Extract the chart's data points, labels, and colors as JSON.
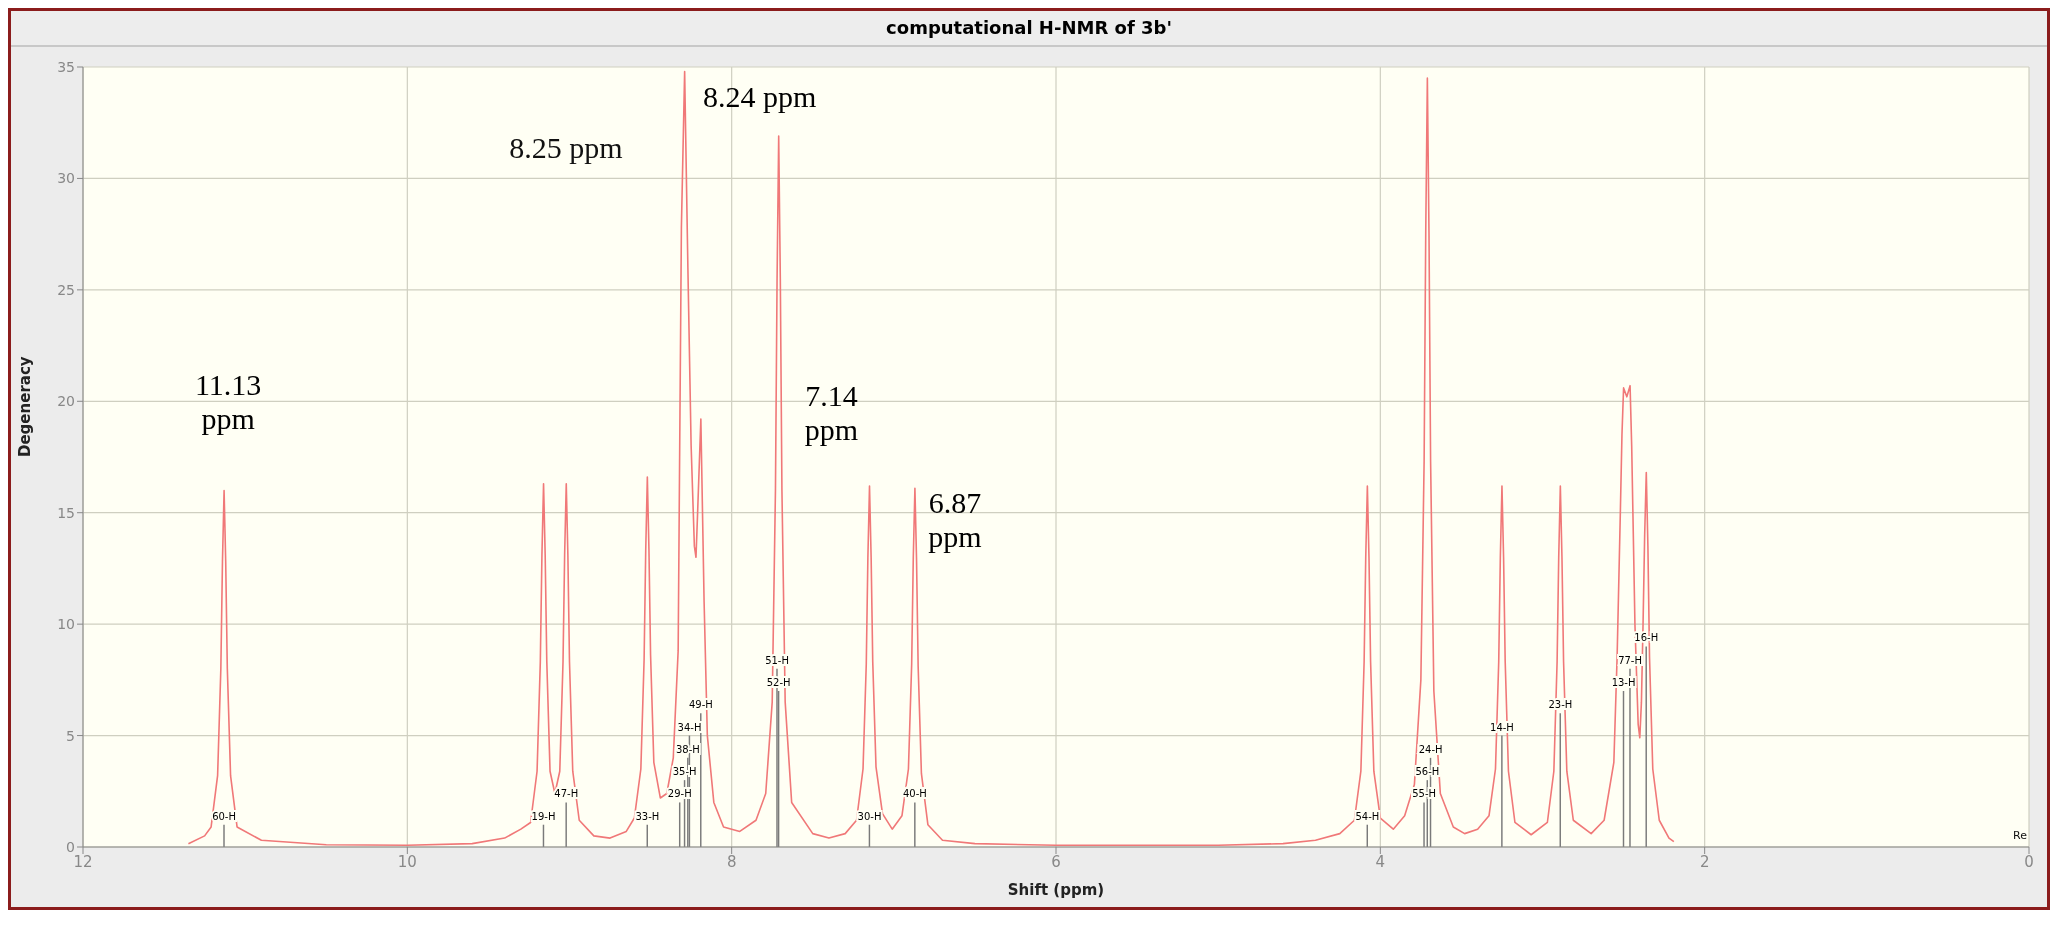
{
  "chart_data": {
    "type": "line",
    "title": "computational H-NMR of 3b'",
    "xlabel": "Shift (ppm)",
    "ylabel": "Degeneracy",
    "xlim": [
      12,
      0
    ],
    "xticks": [
      12,
      10,
      8,
      6,
      4,
      2,
      0
    ],
    "ylim": [
      0,
      35
    ],
    "yticks": [
      0,
      5,
      10,
      15,
      20,
      25,
      30,
      35
    ],
    "grid": true,
    "marker": "none",
    "series": [
      {
        "color": "#f07878",
        "x": [
          11.35,
          11.25,
          11.21,
          11.17,
          11.15,
          11.14,
          11.13,
          11.12,
          11.11,
          11.09,
          11.05,
          10.9,
          10.5,
          10.0,
          9.6,
          9.4,
          9.3,
          9.24,
          9.2,
          9.18,
          9.17,
          9.16,
          9.15,
          9.14,
          9.12,
          9.09,
          9.06,
          9.04,
          9.03,
          9.02,
          9.01,
          9.0,
          8.98,
          8.94,
          8.85,
          8.75,
          8.65,
          8.6,
          8.56,
          8.54,
          8.53,
          8.52,
          8.51,
          8.5,
          8.48,
          8.44,
          8.4,
          8.36,
          8.33,
          8.31,
          8.29,
          8.27,
          8.25,
          8.23,
          8.22,
          8.21,
          8.19,
          8.17,
          8.15,
          8.11,
          8.05,
          7.95,
          7.85,
          7.79,
          7.75,
          7.73,
          7.72,
          7.71,
          7.7,
          7.69,
          7.67,
          7.63,
          7.5,
          7.4,
          7.3,
          7.23,
          7.19,
          7.17,
          7.16,
          7.15,
          7.14,
          7.13,
          7.11,
          7.07,
          7.01,
          6.95,
          6.91,
          6.89,
          6.88,
          6.87,
          6.86,
          6.85,
          6.83,
          6.79,
          6.7,
          6.5,
          6.0,
          5.0,
          4.6,
          4.4,
          4.25,
          4.16,
          4.12,
          4.1,
          4.09,
          4.08,
          4.07,
          4.06,
          4.04,
          4.0,
          3.92,
          3.85,
          3.79,
          3.75,
          3.73,
          3.72,
          3.71,
          3.7,
          3.69,
          3.67,
          3.63,
          3.55,
          3.48,
          3.4,
          3.33,
          3.29,
          3.27,
          3.26,
          3.25,
          3.24,
          3.23,
          3.21,
          3.17,
          3.07,
          2.97,
          2.93,
          2.91,
          2.9,
          2.89,
          2.88,
          2.87,
          2.85,
          2.81,
          2.7,
          2.62,
          2.56,
          2.54,
          2.52,
          2.51,
          2.5,
          2.48,
          2.46,
          2.45,
          2.43,
          2.41,
          2.4,
          2.39,
          2.38,
          2.37,
          2.36,
          2.35,
          2.34,
          2.32,
          2.28,
          2.22,
          2.19
        ],
        "values": [
          0.15,
          0.5,
          0.9,
          3.2,
          8,
          12.8,
          16,
          12.8,
          8,
          3.2,
          0.9,
          0.3,
          0.1,
          0.08,
          0.15,
          0.4,
          0.8,
          1.1,
          3.4,
          8.3,
          13.1,
          16.3,
          13.1,
          8.3,
          3.4,
          2.4,
          3.4,
          8.3,
          13.1,
          16.3,
          13.1,
          8.3,
          3.4,
          1.2,
          0.5,
          0.4,
          0.7,
          1.3,
          3.5,
          8.4,
          13.3,
          16.6,
          13.3,
          8.6,
          3.8,
          2.2,
          2.4,
          4.0,
          8.8,
          27.8,
          34.8,
          26,
          18,
          13.5,
          13,
          15,
          19.2,
          11,
          5,
          2,
          0.9,
          0.7,
          1.2,
          2.4,
          6.5,
          16,
          25.5,
          31.9,
          25.5,
          16,
          6.5,
          2,
          0.6,
          0.4,
          0.6,
          1.2,
          3.5,
          8.2,
          13,
          16.2,
          13,
          8.3,
          3.6,
          1.5,
          0.8,
          1.4,
          3.5,
          8.2,
          13,
          16.1,
          12.9,
          8.1,
          3.3,
          1.0,
          0.3,
          0.15,
          0.08,
          0.08,
          0.15,
          0.3,
          0.6,
          1.2,
          3.4,
          8.3,
          13,
          16.2,
          13,
          8.3,
          3.4,
          1.3,
          0.8,
          1.4,
          2.8,
          7.5,
          17.3,
          27.6,
          34.5,
          27.6,
          17.3,
          7,
          2.4,
          0.9,
          0.6,
          0.8,
          1.4,
          3.5,
          8.3,
          13,
          16.2,
          13,
          8.3,
          3.4,
          1.1,
          0.55,
          1.1,
          3.4,
          8.3,
          13,
          16.2,
          13,
          8.3,
          3.4,
          1.2,
          0.6,
          1.2,
          3.8,
          8.5,
          15,
          18.5,
          20.6,
          20.2,
          20.7,
          18,
          10,
          5.5,
          4.9,
          6.5,
          10,
          14,
          16.8,
          13.5,
          8.5,
          3.5,
          1.2,
          0.4,
          0.24
        ]
      },
      {
        "type": "bar",
        "color": "#7a7a7a",
        "x": [
          11.13,
          9.16,
          9.02,
          8.52,
          8.32,
          8.29,
          8.27,
          8.26,
          8.19,
          7.72,
          7.71,
          7.15,
          6.87,
          4.08,
          3.73,
          3.71,
          3.69,
          3.25,
          2.89,
          2.5,
          2.46,
          2.36
        ],
        "values": [
          1,
          1,
          2,
          1,
          2,
          3,
          4,
          5,
          6,
          8,
          7,
          1,
          2,
          1,
          2,
          3,
          4,
          5,
          6,
          7,
          8,
          9
        ]
      }
    ],
    "annotations": [
      {
        "text": "11.13\nppm",
        "x": 11.13,
        "y": 16
      },
      "8.25 ppm",
      {
        "text": "8.24 ppm",
        "x": 8.29,
        "y": 34.8
      },
      {
        "text": "7.14\nppm",
        "x": 7.15,
        "y": 16.2
      },
      {
        "text": "6.87\nppm",
        "x": 6.87,
        "y": 16.1
      },
      "Re",
      {
        "text": "60-H",
        "x": 11.13,
        "y": 1
      },
      {
        "text": "19-H",
        "x": 9.16,
        "y": 1
      },
      {
        "text": "47-H",
        "x": 9.02,
        "y": 2
      },
      {
        "text": "33-H",
        "x": 8.52,
        "y": 1
      },
      {
        "text": "29-H",
        "x": 8.32,
        "y": 2
      },
      {
        "text": "35-H",
        "x": 8.29,
        "y": 3
      },
      {
        "text": "38-H",
        "x": 8.27,
        "y": 4
      },
      {
        "text": "34-H",
        "x": 8.26,
        "y": 5
      },
      {
        "text": "49-H",
        "x": 8.19,
        "y": 6
      },
      {
        "text": "51-H",
        "x": 7.72,
        "y": 8
      },
      {
        "text": "52-H",
        "x": 7.71,
        "y": 7
      },
      {
        "text": "30-H",
        "x": 7.15,
        "y": 1
      },
      {
        "text": "40-H",
        "x": 6.87,
        "y": 2
      },
      {
        "text": "54-H",
        "x": 4.08,
        "y": 1
      },
      {
        "text": "55-H",
        "x": 3.73,
        "y": 2
      },
      {
        "text": "56-H",
        "x": 3.71,
        "y": 3
      },
      {
        "text": "24-H",
        "x": 3.69,
        "y": 4
      },
      {
        "text": "14-H",
        "x": 3.25,
        "y": 5
      },
      {
        "text": "23-H",
        "x": 2.89,
        "y": 6
      },
      {
        "text": "13-H",
        "x": 2.5,
        "y": 7
      },
      {
        "text": "77-H",
        "x": 2.46,
        "y": 8
      },
      {
        "text": "16-H",
        "x": 2.36,
        "y": 9
      }
    ]
  }
}
